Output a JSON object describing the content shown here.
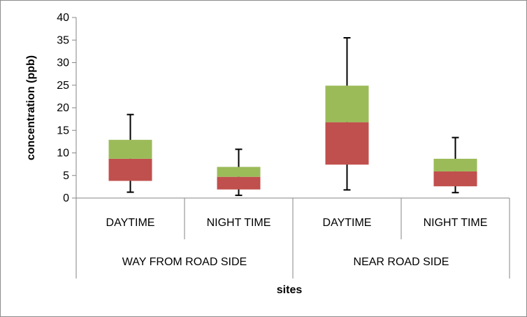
{
  "chart_data": {
    "type": "bar",
    "subtype": "stacked-box-plot",
    "title": "",
    "xlabel": "sites",
    "ylabel": "concentration (ppb)",
    "ylim": [
      0,
      40
    ],
    "yticks": [
      "0",
      "5",
      "10",
      "15",
      "20",
      "25",
      "30",
      "35",
      "40"
    ],
    "grid": false,
    "groups": [
      {
        "label": "WAY FROM ROAD SIDE",
        "span": [
          0,
          1
        ]
      },
      {
        "label": "NEAR ROAD SIDE",
        "span": [
          2,
          3
        ]
      }
    ],
    "categories": [
      "DAYTIME",
      "NIGHT TIME",
      "DAYTIME",
      "NIGHT TIME"
    ],
    "boxes": [
      {
        "whisker_low": 1.3,
        "q1": 3.8,
        "median": 8.7,
        "q3": 12.9,
        "whisker_high": 18.5
      },
      {
        "whisker_low": 0.6,
        "q1": 1.9,
        "median": 4.7,
        "q3": 6.9,
        "whisker_high": 10.8
      },
      {
        "whisker_low": 1.8,
        "q1": 7.4,
        "median": 16.8,
        "q3": 24.9,
        "whisker_high": 35.5
      },
      {
        "whisker_low": 1.2,
        "q1": 2.6,
        "median": 5.9,
        "q3": 8.7,
        "whisker_high": 13.4
      }
    ],
    "colors": {
      "lower_box": "#c0504d",
      "upper_box": "#9bbb59",
      "whisker": "#000000",
      "axis": "#868686"
    }
  }
}
